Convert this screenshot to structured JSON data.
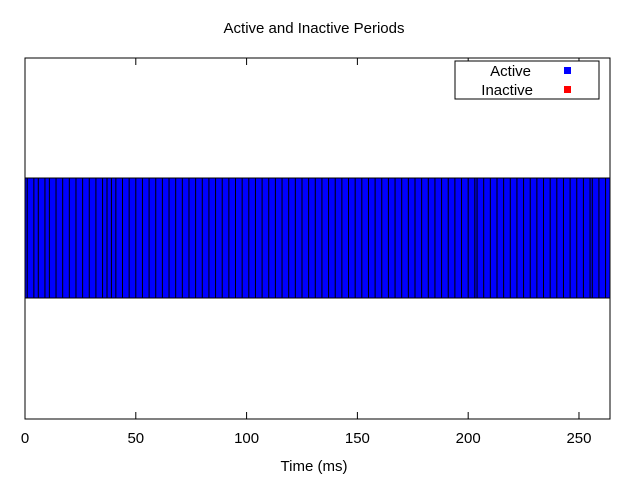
{
  "chart_data": {
    "type": "bar",
    "orientation": "horizontal-timeline",
    "title": "Active and Inactive Periods",
    "xlabel": "Time (ms)",
    "ylabel": "",
    "xlim": [
      0,
      264
    ],
    "x_ticks": [
      0,
      50,
      100,
      150,
      200,
      250
    ],
    "grid": false,
    "legend_position": "top-right",
    "series": [
      {
        "name": "Active",
        "color": "#0000ff",
        "intervals": [
          [
            0,
            264
          ]
        ]
      },
      {
        "name": "Inactive",
        "color": "#ff0000",
        "intervals": []
      }
    ],
    "segment_boundaries": [
      1,
      4,
      6,
      9,
      11,
      14,
      17,
      20,
      23,
      26,
      29,
      32,
      35,
      37,
      39,
      41,
      44,
      47,
      50,
      53,
      56,
      59,
      62,
      65,
      68,
      71,
      74,
      77,
      80,
      83,
      86,
      89,
      92,
      95,
      98,
      101,
      104,
      107,
      110,
      113,
      116,
      119,
      122,
      125,
      128,
      131,
      134,
      137,
      140,
      143,
      146,
      149,
      152,
      155,
      158,
      161,
      164,
      167,
      170,
      173,
      176,
      179,
      182,
      185,
      188,
      191,
      194,
      197,
      200,
      203,
      204,
      207,
      210,
      213,
      216,
      219,
      222,
      225,
      228,
      231,
      234,
      237,
      240,
      243,
      246,
      249,
      252,
      255,
      256,
      259,
      262
    ]
  }
}
